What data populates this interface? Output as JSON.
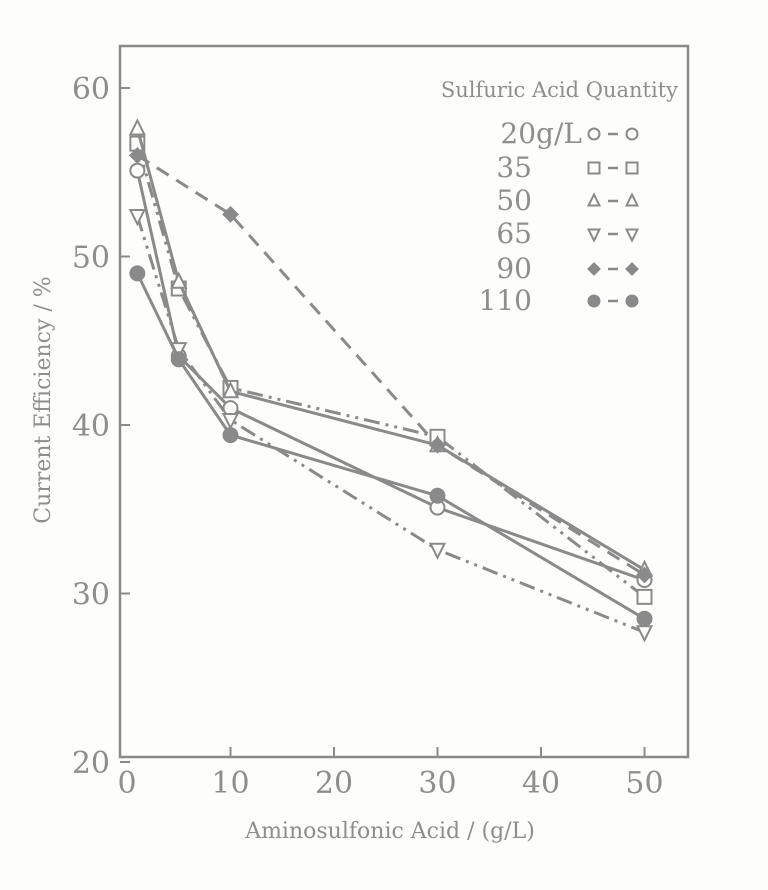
{
  "chart_data": {
    "type": "line",
    "title": "",
    "xlabel": "Aminosulfonic Acid / (g/L)",
    "ylabel": "Current Efficiency / %",
    "xlim": [
      -0.5,
      53.5
    ],
    "ylim": [
      20,
      62.5
    ],
    "xticks": [
      0,
      10,
      20,
      30,
      40,
      50
    ],
    "yticks": [
      20,
      30,
      40,
      50,
      60
    ],
    "grid": false,
    "legend_position": "upper right",
    "legend_title": "Sulfuric Acid Quantity",
    "x": [
      1,
      5,
      10,
      30,
      50
    ],
    "series": [
      {
        "name": "20g/L",
        "legend_label": "20g/L",
        "marker": "open-circle",
        "line": "solid",
        "values": [
          55.1,
          44.1,
          41.0,
          35.1,
          30.8
        ]
      },
      {
        "name": "35",
        "legend_label": "35",
        "marker": "open-square",
        "line": "dash-dot-dot",
        "values": [
          56.7,
          48.1,
          42.2,
          39.3,
          29.8
        ]
      },
      {
        "name": "50",
        "legend_label": "50",
        "marker": "open-triangle-up",
        "line": "solid",
        "values": [
          57.6,
          48.5,
          42.0,
          38.8,
          31.4
        ]
      },
      {
        "name": "65",
        "legend_label": "65",
        "marker": "open-triangle-down",
        "line": "dash-dot-dot",
        "values": [
          52.4,
          44.5,
          40.3,
          32.6,
          27.7
        ]
      },
      {
        "name": "90",
        "legend_label": "90",
        "marker": "filled-diamond",
        "line": "dashed",
        "values": [
          56.0,
          null,
          52.5,
          38.8,
          31.1
        ]
      },
      {
        "name": "110",
        "legend_label": "110",
        "marker": "filled-circle",
        "line": "solid",
        "values": [
          49.0,
          43.9,
          39.4,
          35.8,
          28.5
        ]
      }
    ]
  },
  "style": {
    "ink_color": "#8a8a8a",
    "background": "#fdfdfb"
  }
}
